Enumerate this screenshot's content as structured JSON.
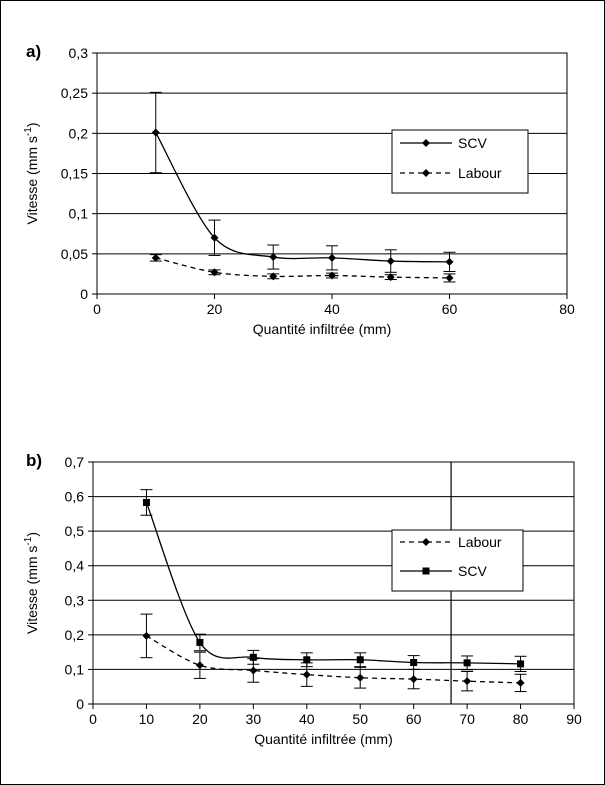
{
  "chart_data": [
    {
      "type": "line",
      "panel_label": "a)",
      "xlabel": "Quantité infiltrée (mm)",
      "ylabel": "Vitesse (mm s-1)",
      "ylabel_main": "Vitesse (mm s",
      "ylabel_sup": "-1",
      "ylabel_close": ")",
      "xlim": [
        0,
        80
      ],
      "ylim": [
        0,
        0.3
      ],
      "x_ticks": [
        0,
        20,
        40,
        60,
        80
      ],
      "x_tick_labels": [
        "0",
        "20",
        "40",
        "60",
        "80"
      ],
      "y_ticks": [
        0,
        0.05,
        0.1,
        0.15,
        0.2,
        0.25,
        0.3
      ],
      "y_tick_labels": [
        "0",
        "0,05",
        "0,1",
        "0,15",
        "0,2",
        "0,25",
        "0,3"
      ],
      "grid": "horizontal",
      "legend_position": "right",
      "series": [
        {
          "name": "SCV",
          "style": "solid",
          "marker": "diamond",
          "x": [
            10,
            20,
            30,
            40,
            50,
            60
          ],
          "y": [
            0.201,
            0.07,
            0.046,
            0.045,
            0.041,
            0.04
          ],
          "err": [
            0.05,
            0.022,
            0.015,
            0.015,
            0.014,
            0.012
          ]
        },
        {
          "name": "Labour",
          "style": "dashed",
          "marker": "diamond",
          "x": [
            10,
            20,
            30,
            40,
            50,
            60
          ],
          "y": [
            0.045,
            0.027,
            0.022,
            0.023,
            0.021,
            0.02
          ],
          "err": [
            0.004,
            0.003,
            0.003,
            0.003,
            0.003,
            0.005
          ]
        }
      ]
    },
    {
      "type": "line",
      "panel_label": "b)",
      "xlabel": "Quantité infiltrée (mm)",
      "ylabel": "Vitesse (mm s-1)",
      "ylabel_main": "Vitesse (mm s",
      "ylabel_sup": "-1",
      "ylabel_close": ")",
      "xlim": [
        0,
        90
      ],
      "ylim": [
        0,
        0.7
      ],
      "x_ticks": [
        0,
        10,
        20,
        30,
        40,
        50,
        60,
        70,
        80,
        90
      ],
      "x_tick_labels": [
        "0",
        "10",
        "20",
        "30",
        "40",
        "50",
        "60",
        "70",
        "80",
        "90"
      ],
      "y_ticks": [
        0,
        0.1,
        0.2,
        0.3,
        0.4,
        0.5,
        0.6,
        0.7
      ],
      "y_tick_labels": [
        "0",
        "0,1",
        "0,2",
        "0,3",
        "0,4",
        "0,5",
        "0,6",
        "0,7"
      ],
      "grid": "horizontal",
      "vertical_line_x": 67,
      "legend_position": "right",
      "series": [
        {
          "name": "Labour",
          "style": "dashed",
          "marker": "diamond",
          "x": [
            10,
            20,
            30,
            40,
            50,
            60,
            70,
            80
          ],
          "y": [
            0.197,
            0.112,
            0.097,
            0.085,
            0.076,
            0.072,
            0.066,
            0.061
          ],
          "err": [
            0.063,
            0.038,
            0.034,
            0.034,
            0.03,
            0.028,
            0.028,
            0.025
          ]
        },
        {
          "name": "SCV",
          "style": "solid",
          "marker": "square",
          "x": [
            10,
            20,
            30,
            40,
            50,
            60,
            70,
            80
          ],
          "y": [
            0.583,
            0.178,
            0.135,
            0.128,
            0.128,
            0.12,
            0.119,
            0.116
          ],
          "err": [
            0.037,
            0.024,
            0.02,
            0.02,
            0.02,
            0.02,
            0.02,
            0.022
          ]
        }
      ]
    }
  ]
}
